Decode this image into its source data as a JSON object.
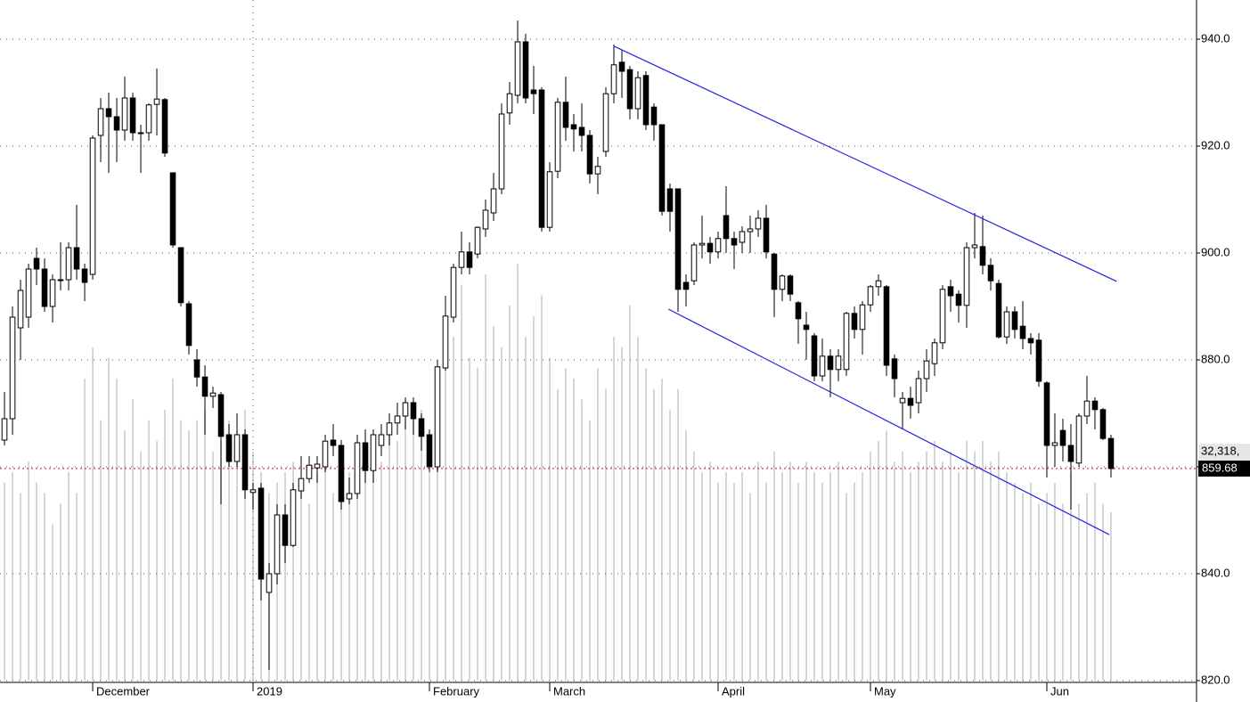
{
  "chart_data": {
    "type": "candlestick",
    "open": [
      865,
      869,
      886,
      888,
      899,
      897,
      890,
      895,
      895,
      901,
      897,
      896,
      922,
      927,
      925.5,
      923,
      929,
      922.5,
      922.5,
      927.8,
      928.7,
      915,
      901,
      890.5,
      880,
      876.8,
      873.2,
      873.5,
      866,
      861,
      866,
      855.2,
      856,
      836.5,
      840,
      851,
      845.3,
      855.5,
      857.8,
      859.8,
      860,
      865,
      864,
      854,
      855,
      864.5,
      859.3,
      864,
      866,
      868.2,
      869.5,
      872,
      869,
      866,
      860,
      878.5,
      888,
      897.3,
      900.2,
      899.8,
      904.5,
      907.5,
      912,
      926.2,
      929.5,
      939.5,
      930.5,
      930.5,
      904.8,
      915.3,
      928.2,
      924,
      923.5,
      922,
      914.8,
      919,
      929.8,
      935.7,
      934.3,
      927,
      933.2,
      927.3,
      924,
      912,
      912,
      894.5,
      894.8,
      901.5,
      901.8,
      900.2,
      907,
      902.7,
      902,
      904,
      904.5,
      906.5,
      899.8,
      893.2,
      895.7,
      890.7,
      886.5,
      884.5,
      877,
      880.7,
      878.2,
      878.2,
      888.7,
      885.7,
      890.3,
      893.7,
      893.7,
      880.2,
      872,
      872.8,
      872,
      876.5,
      879.3,
      883.2,
      893.7,
      892.3,
      890.2,
      901,
      901.2,
      897.7,
      894.3,
      884.3,
      889,
      886.3,
      884,
      883.7,
      875.7,
      864,
      866.8,
      864,
      860.7,
      869.5,
      872.3,
      870.7,
      865.3
    ],
    "high": [
      874,
      890,
      895,
      898,
      901,
      899,
      896,
      902,
      902,
      909,
      898,
      922,
      929,
      930,
      929,
      933,
      930,
      924,
      928,
      934.5,
      929,
      915,
      901,
      891,
      882,
      879,
      875,
      874,
      868,
      870,
      867,
      857,
      857,
      842,
      853,
      853,
      857,
      862,
      862,
      862,
      866,
      868,
      865,
      858,
      866,
      867,
      867,
      868,
      870,
      872,
      873,
      873,
      870,
      867,
      880,
      892,
      898,
      904,
      902,
      905,
      910,
      915,
      928,
      932,
      943.5,
      941,
      935,
      931,
      917,
      929,
      933,
      926,
      928,
      923,
      918,
      931,
      939,
      938,
      935,
      934,
      934,
      928,
      924,
      913,
      912,
      896,
      902,
      907,
      903,
      904,
      912.5,
      904,
      905,
      907,
      908,
      909,
      900,
      896,
      896,
      891,
      889,
      885,
      884,
      882,
      882,
      889,
      890,
      891,
      894,
      896,
      894,
      881,
      874,
      875,
      878,
      882,
      884,
      894,
      895,
      893,
      902,
      907.5,
      907,
      899,
      895,
      890,
      890,
      891,
      885,
      885,
      876,
      870,
      869,
      868,
      870,
      877,
      873,
      871,
      866
    ],
    "low": [
      864,
      866,
      880,
      886,
      894,
      889,
      887,
      893,
      893,
      895,
      891,
      895,
      917,
      915,
      917,
      921,
      921,
      915,
      921,
      922,
      918,
      901,
      890,
      881,
      875,
      866,
      871,
      853,
      860,
      860,
      854,
      852,
      835,
      822,
      838,
      842,
      845,
      854,
      857,
      857,
      859,
      862,
      852,
      853,
      854,
      857,
      857,
      862,
      864,
      866,
      867,
      866,
      863,
      859,
      859,
      878,
      887,
      896,
      896,
      899,
      903,
      906,
      911,
      924,
      928,
      928,
      926,
      904,
      904,
      914,
      921,
      919,
      919,
      913,
      911,
      918,
      928,
      929,
      925,
      925,
      923,
      921,
      907,
      904,
      889,
      890,
      894,
      899,
      898,
      899,
      900,
      897,
      900,
      900,
      903,
      899,
      888,
      891,
      891,
      883,
      880,
      876,
      876,
      873,
      876,
      877,
      884,
      881,
      889,
      892,
      877,
      873,
      867,
      869,
      870,
      874,
      877,
      882,
      889,
      887,
      886,
      899,
      896,
      893,
      884,
      883,
      884,
      882,
      881,
      875,
      858,
      860,
      861,
      852,
      860,
      868,
      867,
      865,
      858
    ],
    "close": [
      869,
      888,
      893,
      897,
      897,
      890,
      895,
      895,
      901,
      897,
      894.5,
      921.5,
      927,
      925.5,
      923,
      929,
      922.5,
      922.5,
      927.7,
      928.8,
      918.7,
      901.5,
      890.7,
      882.7,
      876.8,
      873.2,
      873.8,
      865.7,
      861,
      866,
      855.7,
      855.7,
      839,
      840,
      851,
      845.3,
      855.7,
      857.8,
      860.3,
      860.5,
      864.8,
      864,
      853.5,
      855,
      864.5,
      859.3,
      866,
      866,
      868.2,
      869.5,
      872,
      869,
      865.7,
      860,
      878.7,
      888.2,
      897.3,
      900.2,
      897.3,
      904.8,
      908,
      912,
      926,
      929.8,
      939.5,
      929,
      929.8,
      904.8,
      915.2,
      928.2,
      923.5,
      923.2,
      922,
      914.8,
      916.2,
      929.8,
      935.2,
      934,
      927,
      932.8,
      924,
      924,
      907.8,
      907.8,
      893.2,
      893.2,
      901.5,
      901.8,
      900.2,
      902.7,
      902.7,
      901.5,
      904,
      904.5,
      906.5,
      900.2,
      893.2,
      895.7,
      892.3,
      887.7,
      885.7,
      877,
      880.7,
      878.2,
      880.7,
      888.7,
      885.7,
      890.3,
      893.7,
      894.8,
      879,
      876.5,
      872.8,
      871.5,
      876.5,
      879.8,
      883.2,
      893.2,
      892,
      890.2,
      901,
      901.5,
      897.7,
      894.8,
      884.3,
      889,
      885.7,
      884,
      883.2,
      876,
      864,
      864.5,
      864,
      861,
      869.5,
      872.3,
      870.7,
      865.3,
      859.68
    ],
    "volume": [
      38000000.0,
      40000000.0,
      36000000.0,
      42000000.0,
      38000000.0,
      36000000.0,
      30000000.0,
      34000000.0,
      40000000.0,
      36000000.0,
      58000000.0,
      64000000.0,
      50000000.0,
      62000000.0,
      58000000.0,
      48000000.0,
      54000000.0,
      44000000.0,
      50000000.0,
      46000000.0,
      52000000.0,
      58000000.0,
      50000000.0,
      48000000.0,
      50000000.0,
      52000000.0,
      44000000.0,
      46000000.0,
      50000000.0,
      48000000.0,
      52000000.0,
      44000000.0,
      40000000.0,
      36000000.0,
      38000000.0,
      40000000.0,
      42000000.0,
      38000000.0,
      34000000.0,
      40000000.0,
      42000000.0,
      36000000.0,
      38000000.0,
      40000000.0,
      44000000.0,
      40000000.0,
      46000000.0,
      42000000.0,
      48000000.0,
      46000000.0,
      54000000.0,
      50000000.0,
      52000000.0,
      40000000.0,
      56000000.0,
      60000000.0,
      66000000.0,
      76000000.0,
      62000000.0,
      60000000.0,
      78000000.0,
      68000000.0,
      64000000.0,
      72000000.0,
      80000000.0,
      66000000.0,
      70000000.0,
      74000000.0,
      62000000.0,
      56000000.0,
      60000000.0,
      58000000.0,
      54000000.0,
      50000000.0,
      60000000.0,
      56000000.0,
      66000000.0,
      64000000.0,
      72000000.0,
      66000000.0,
      60000000.0,
      56000000.0,
      58000000.0,
      52000000.0,
      56000000.0,
      48000000.0,
      44000000.0,
      40000000.0,
      42000000.0,
      38000000.0,
      40000000.0,
      38000000.0,
      40000000.0,
      36000000.0,
      42000000.0,
      38000000.0,
      44000000.0,
      40000000.0,
      42000000.0,
      38000000.0,
      42000000.0,
      40000000.0,
      38000000.0,
      40000000.0,
      42000000.0,
      36000000.0,
      38000000.0,
      40000000.0,
      44000000.0,
      46000000.0,
      48000000.0,
      42000000.0,
      44000000.0,
      40000000.0,
      42000000.0,
      44000000.0,
      46000000.0,
      42000000.0,
      44000000.0,
      40000000.0,
      46000000.0,
      44000000.0,
      46000000.0,
      42000000.0,
      44000000.0,
      40000000.0,
      38000000.0,
      36000000.0,
      38000000.0,
      34000000.0,
      36000000.0,
      38000000.0,
      34000000.0,
      40000000.0,
      34000000.0,
      36000000.0,
      38000000.0,
      34000000.0,
      32318000.0
    ],
    "volume_label": "32,318,",
    "vlim": [
      0,
      85000000
    ],
    "xlim": [
      -0.56,
      148.67
    ],
    "xticks": [
      {
        "value": 11,
        "label": "December"
      },
      {
        "value": 31,
        "label": "2019"
      },
      {
        "value": 53,
        "label": "February"
      },
      {
        "value": 68,
        "label": "March"
      },
      {
        "value": 89,
        "label": "April"
      },
      {
        "value": 108,
        "label": "May"
      },
      {
        "value": 130,
        "label": "Jun"
      }
    ],
    "ylim": [
      820,
      947.33
    ],
    "yticks": [
      {
        "value": 820,
        "label": "820.0"
      },
      {
        "value": 840,
        "label": "840.0"
      },
      {
        "value": 860,
        "label": "860.0"
      },
      {
        "value": 880,
        "label": "880.0"
      },
      {
        "value": 900,
        "label": "900.0"
      },
      {
        "value": 920,
        "label": "920.0"
      },
      {
        "value": 940,
        "label": "940.0"
      }
    ],
    "grid": true,
    "up_color": "#ffffff",
    "down_color": "#000000",
    "volume_color": "#c8c8c8",
    "last_line_color": "#d00000",
    "trendlines": [
      {
        "x": [
          76,
          138.7
        ],
        "y": [
          938.7,
          894.7
        ],
        "color": "#2323e6"
      },
      {
        "x": [
          82.8,
          137.8
        ],
        "y": [
          889.5,
          847.3
        ],
        "color": "#2323e6"
      }
    ]
  }
}
